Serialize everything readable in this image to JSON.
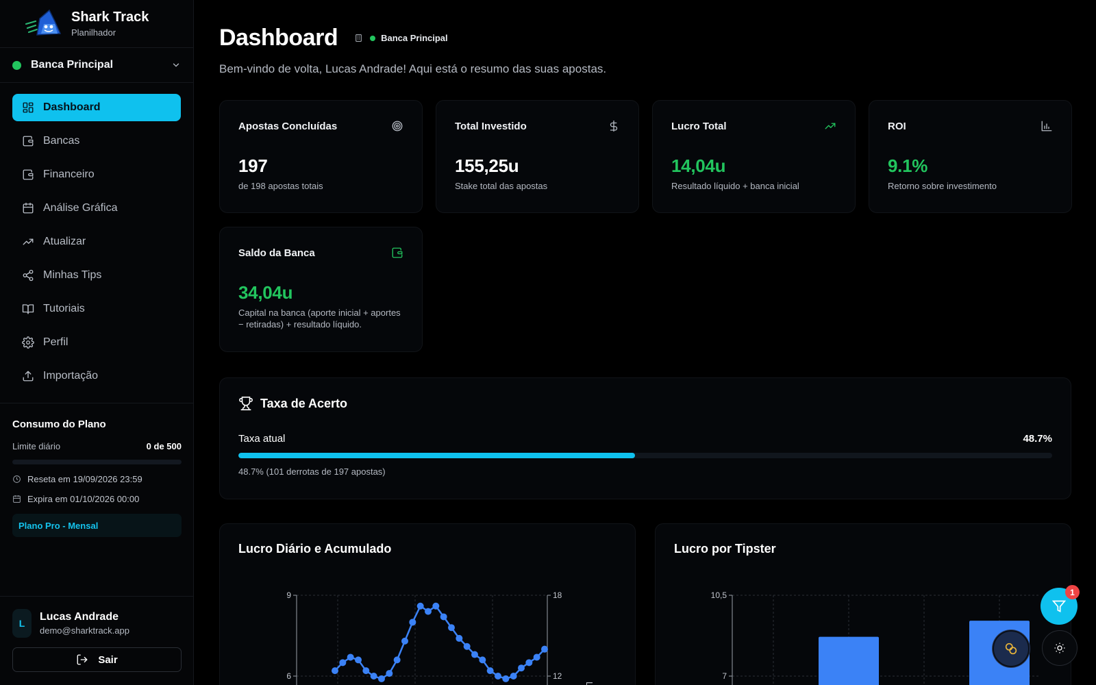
{
  "brand": {
    "name": "Shark Track",
    "subtitle": "Planilhador"
  },
  "bank_selector": {
    "name": "Banca Principal",
    "status_color": "#22c55e"
  },
  "nav": {
    "items": [
      {
        "label": "Dashboard",
        "icon": "grid-icon",
        "active": true
      },
      {
        "label": "Bancas",
        "icon": "wallet-icon"
      },
      {
        "label": "Financeiro",
        "icon": "wallet-icon"
      },
      {
        "label": "Análise Gráfica",
        "icon": "calendar-icon"
      },
      {
        "label": "Atualizar",
        "icon": "trending-up-icon"
      },
      {
        "label": "Minhas Tips",
        "icon": "share-icon"
      },
      {
        "label": "Tutoriais",
        "icon": "book-icon"
      },
      {
        "label": "Perfil",
        "icon": "gear-icon"
      },
      {
        "label": "Importação",
        "icon": "upload-icon"
      }
    ]
  },
  "plan": {
    "title": "Consumo do Plano",
    "limit_label": "Limite diário",
    "limit_value": "0 de 500",
    "limit_fraction": 0,
    "resets": "Reseta em 19/09/2026 23:59",
    "expires": "Expira em 01/10/2026 00:00",
    "badge": "Plano Pro - Mensal"
  },
  "user": {
    "initial": "L",
    "name": "Lucas Andrade",
    "email": "demo@sharktrack.app",
    "logout_label": "Sair"
  },
  "header": {
    "title": "Dashboard",
    "bank_badge": "Banca Principal",
    "welcome": "Bem-vindo de volta, Lucas Andrade! Aqui está o resumo das suas apostas."
  },
  "kpis": {
    "completed": {
      "title": "Apostas Concluídas",
      "value": "197",
      "sub": "de 198 apostas totais",
      "icon": "target-icon"
    },
    "invested": {
      "title": "Total Investido",
      "value": "155,25u",
      "sub": "Stake total das apostas",
      "icon": "dollar-icon"
    },
    "profit": {
      "title": "Lucro Total",
      "value": "14,04u",
      "sub": "Resultado líquido + banca inicial",
      "icon": "trending-up-icon"
    },
    "roi": {
      "title": "ROI",
      "value": "9.1%",
      "sub": "Retorno sobre investimento",
      "icon": "bar-chart-icon"
    },
    "balance": {
      "title": "Saldo da Banca",
      "value": "34,04u",
      "sub": "Capital na banca (aporte inicial + aportes − retiradas) + resultado líquido.",
      "icon": "wallet-icon"
    }
  },
  "hit_rate": {
    "title": "Taxa de Acerto",
    "label": "Taxa atual",
    "value_text": "48.7%",
    "value": 48.7,
    "note": "48.7% (101 derrotas de 197 apostas)"
  },
  "colors": {
    "accent": "#0fc1ee",
    "positive": "#22c55e",
    "series": "#3b82f6",
    "badge": "#ef4444"
  },
  "chart_data": [
    {
      "type": "line",
      "title": "Lucro Diário e Acumulado",
      "y_left_ticks": [
        "9",
        "6"
      ],
      "y_right_ticks": [
        "18",
        "12"
      ],
      "y2label": "Luc",
      "ylim": [
        6,
        9
      ],
      "y2lim": [
        12,
        18
      ],
      "series": [
        {
          "values": [
            6.2,
            6.5,
            6.7,
            6.6,
            6.2,
            6.0,
            5.9,
            6.1,
            6.6,
            7.3,
            8.0,
            8.6,
            8.4,
            8.6,
            8.2,
            7.8,
            7.4,
            7.1,
            6.8,
            6.6,
            6.2,
            6.0,
            5.9,
            6.0,
            6.3,
            6.5,
            6.7,
            7.0
          ]
        }
      ]
    },
    {
      "type": "bar",
      "title": "Lucro por Tipster",
      "y_ticks": [
        "10,5",
        "7"
      ],
      "ylim": [
        7,
        10.5
      ],
      "values": [
        8.7,
        9.4
      ]
    }
  ],
  "fab": {
    "filter_count": "1"
  }
}
